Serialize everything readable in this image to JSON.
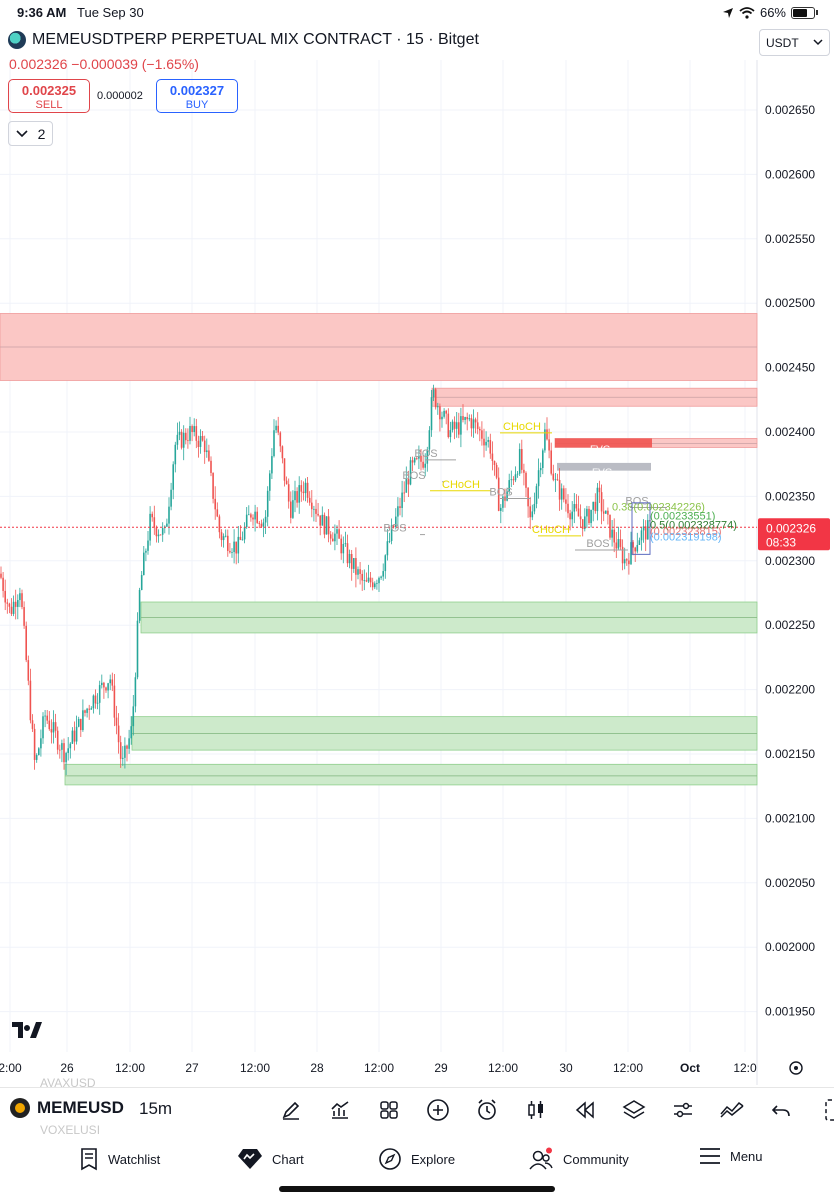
{
  "status_bar": {
    "time": "9:36 AM",
    "date": "Tue Sep 30",
    "battery_text": "66%",
    "icons": [
      "location-icon",
      "wifi-icon",
      "battery-icon"
    ]
  },
  "header": {
    "symbol_title": "MEMEUSDTPERP PERPETUAL MIX CONTRACT · 15 · Bitget",
    "price_line": "0.002326 −0.000039 (−1.65%)",
    "sell": {
      "price": "0.002325",
      "label": "SELL"
    },
    "spread": "0.000002",
    "buy": {
      "price": "0.002327",
      "label": "BUY"
    },
    "indicators_count": "2",
    "currency": "USDT"
  },
  "colors": {
    "up": "#26a69a",
    "down": "#ef5350",
    "supply_zone": "#fbc7c5",
    "demand_zone": "#cdeacb",
    "price_badge": "#f23645",
    "choch": "#f5e100"
  },
  "chart_data": {
    "type": "candlestick",
    "symbol": "MEMEUSDTPERP",
    "interval": "15",
    "last_price": "0.002326",
    "countdown": "08:33",
    "y_axis_ticks": [
      "0.002650",
      "0.002600",
      "0.002550",
      "0.002500",
      "0.002450",
      "0.002400",
      "0.002350",
      "0.002300",
      "0.002250",
      "0.002200",
      "0.002150",
      "0.002100",
      "0.002050",
      "0.002000",
      "0.001950"
    ],
    "ylim": [
      0.00193,
      0.00268
    ],
    "x_axis_ticks": [
      "2:00",
      "26",
      "12:00",
      "27",
      "12:00",
      "28",
      "12:00",
      "29",
      "12:00",
      "30",
      "12:00",
      "Oct",
      "12:0"
    ],
    "supply_zones": [
      {
        "top": 0.002492,
        "bottom": 0.00244,
        "mid": 0.002466
      },
      {
        "top": 0.002434,
        "bottom": 0.00242,
        "mid": 0.002427
      },
      {
        "top": 0.002395,
        "bottom": 0.002388,
        "mid": 0.002391
      }
    ],
    "demand_zones": [
      {
        "top": 0.002268,
        "bottom": 0.002244,
        "mid": 0.002256
      },
      {
        "top": 0.002179,
        "bottom": 0.002153,
        "mid": 0.002166
      },
      {
        "top": 0.002142,
        "bottom": 0.002126,
        "mid": 0.002133
      }
    ],
    "fvg_zones": [
      {
        "label": "FVG",
        "top": 0.002395,
        "bottom": 0.002388,
        "color": "#ef5350"
      },
      {
        "label": "FVG",
        "top": 0.002376,
        "bottom": 0.00237,
        "color": "#b2b5be"
      }
    ],
    "structure_labels": [
      {
        "text": "BOS",
        "price": 0.002383,
        "color": "#a0a0a0"
      },
      {
        "text": "BOS",
        "price": 0.002366,
        "color": "#a0a0a0"
      },
      {
        "text": "BOS",
        "price": 0.002325,
        "color": "#a0a0a0"
      },
      {
        "text": "CHoCH",
        "price": 0.002359,
        "color": "#e8d800"
      },
      {
        "text": "CHoCH",
        "price": 0.002404,
        "color": "#e8d800"
      },
      {
        "text": "BOS",
        "price": 0.002353,
        "color": "#a0a0a0"
      },
      {
        "text": "CHoCH",
        "price": 0.002324,
        "color": "#e8d800"
      },
      {
        "text": "BOS",
        "price": 0.002313,
        "color": "#a0a0a0"
      },
      {
        "text": "BOS",
        "price": 0.002346,
        "color": "#a0a0a0"
      }
    ],
    "fib_labels": [
      {
        "text": "0.38(0.002342226)",
        "price": 0.002342,
        "color": "#8bc34a"
      },
      {
        "text": "(0.00233551)",
        "price": 0.002335,
        "color": "#4caf50"
      },
      {
        "text": "0.5(0.002328774)",
        "price": 0.002328,
        "color": "#2e7d32"
      },
      {
        "text": "(0.002323815)",
        "price": 0.002323,
        "color": "#e57373"
      },
      {
        "text": "(0.002319198)",
        "price": 0.002319,
        "color": "#64b5f6"
      }
    ]
  },
  "toolbar": {
    "ghost_top": "AVAXUSD",
    "ghost_bottom": "VOXELUSI",
    "symbol": "MEMEUSD",
    "interval": "15m",
    "icons": [
      "draw-icon",
      "indicators-icon",
      "templates-icon",
      "add-icon",
      "alert-icon",
      "chart-type-icon",
      "replay-icon",
      "layers-icon",
      "settings-icon",
      "compare-icon",
      "undo-icon",
      "more-icon"
    ]
  },
  "bottom_nav": {
    "items": [
      {
        "label": "Watchlist",
        "icon": "watchlist-icon"
      },
      {
        "label": "Chart",
        "icon": "chart-icon"
      },
      {
        "label": "Explore",
        "icon": "explore-icon"
      },
      {
        "label": "Community",
        "icon": "community-icon"
      },
      {
        "label": "Menu",
        "icon": "menu-icon"
      }
    ]
  }
}
